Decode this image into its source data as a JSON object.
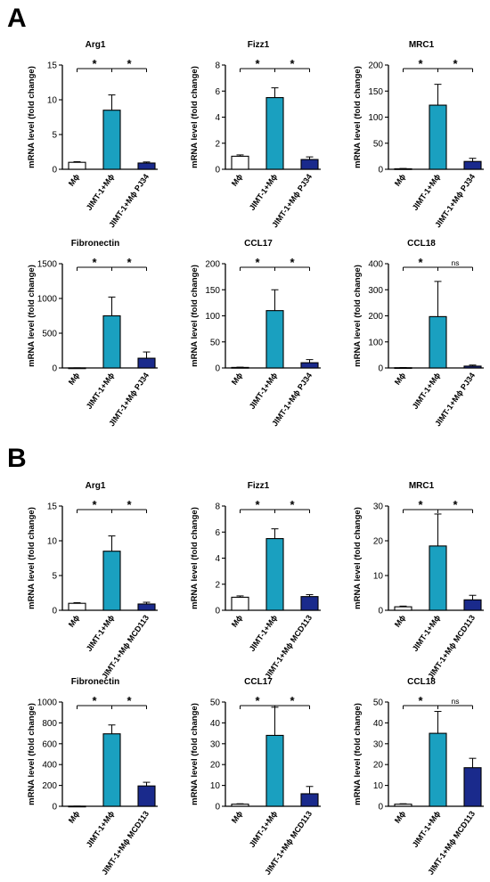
{
  "panels": [
    {
      "label": "A"
    },
    {
      "label": "B"
    }
  ],
  "colors": {
    "control": "#ffffff",
    "jimt": "#1aa0c0",
    "treated": "#1a2a8c",
    "stroke": "#000000"
  },
  "chart_data": [
    {
      "type": "bar",
      "title": "Arg1",
      "ylabel": "mRNA level (fold change)",
      "categories": [
        "Mϕ",
        "JIMT-1+Mϕ",
        "JIMT-1+Mϕ PJ34"
      ],
      "values": [
        1.0,
        8.5,
        0.9
      ],
      "errors": [
        0.1,
        2.2,
        0.15
      ],
      "ylim": [
        0,
        15
      ],
      "yticks": [
        0,
        5,
        10,
        15
      ],
      "significance": [
        {
          "from": 0,
          "to": 1,
          "label": "*"
        },
        {
          "from": 1,
          "to": 2,
          "label": "*"
        }
      ]
    },
    {
      "type": "bar",
      "title": "Fizz1",
      "ylabel": "mRNA level (fold change)",
      "categories": [
        "Mϕ",
        "JIMT-1+Mϕ",
        "JIMT-1+Mϕ PJ34"
      ],
      "values": [
        1.0,
        5.5,
        0.75
      ],
      "errors": [
        0.1,
        0.75,
        0.2
      ],
      "ylim": [
        0,
        8
      ],
      "yticks": [
        0,
        2,
        4,
        6,
        8
      ],
      "significance": [
        {
          "from": 0,
          "to": 1,
          "label": "*"
        },
        {
          "from": 1,
          "to": 2,
          "label": "*"
        }
      ]
    },
    {
      "type": "bar",
      "title": "MRC1",
      "ylabel": "mRNA level (fold change)",
      "categories": [
        "Mϕ",
        "JIMT-1+Mϕ",
        "JIMT-1+Mϕ PJ34"
      ],
      "values": [
        1,
        123,
        15
      ],
      "errors": [
        0.5,
        40,
        6
      ],
      "ylim": [
        0,
        200
      ],
      "yticks": [
        0,
        50,
        100,
        150,
        200
      ],
      "significance": [
        {
          "from": 0,
          "to": 1,
          "label": "*"
        },
        {
          "from": 1,
          "to": 2,
          "label": "*"
        }
      ]
    },
    {
      "type": "bar",
      "title": "Fibronectin",
      "ylabel": "mRNA level (fold change)",
      "categories": [
        "Mϕ",
        "JIMT-1+Mϕ",
        "JIMT-1+Mϕ PJ34"
      ],
      "values": [
        1,
        750,
        140
      ],
      "errors": [
        0.5,
        270,
        90
      ],
      "ylim": [
        0,
        1500
      ],
      "yticks": [
        0,
        500,
        1000,
        1500
      ],
      "significance": [
        {
          "from": 0,
          "to": 1,
          "label": "*"
        },
        {
          "from": 1,
          "to": 2,
          "label": "*"
        }
      ]
    },
    {
      "type": "bar",
      "title": "CCL17",
      "ylabel": "mRNA level (fold change)",
      "categories": [
        "Mϕ",
        "JIMT-1+Mϕ",
        "JIMT-1+Mϕ PJ34"
      ],
      "values": [
        1,
        110,
        10
      ],
      "errors": [
        0.5,
        40,
        6
      ],
      "ylim": [
        0,
        200
      ],
      "yticks": [
        0,
        50,
        100,
        150,
        200
      ],
      "significance": [
        {
          "from": 0,
          "to": 1,
          "label": "*"
        },
        {
          "from": 1,
          "to": 2,
          "label": "*"
        }
      ]
    },
    {
      "type": "bar",
      "title": "CCL18",
      "ylabel": "mRNA level (fold change)",
      "categories": [
        "Mϕ",
        "JIMT-1+Mϕ",
        "JIMT-1+Mϕ PJ34"
      ],
      "values": [
        1,
        197,
        7
      ],
      "errors": [
        0.5,
        135,
        4
      ],
      "ylim": [
        0,
        400
      ],
      "yticks": [
        0,
        100,
        200,
        300,
        400
      ],
      "significance": [
        {
          "from": 0,
          "to": 1,
          "label": "*"
        },
        {
          "from": 1,
          "to": 2,
          "label": "ns"
        }
      ]
    },
    {
      "type": "bar",
      "title": "Arg1",
      "ylabel": "mRNA level (fold change)",
      "categories": [
        "Mϕ",
        "JIMT-1+Mϕ",
        "JIMT-1+Mϕ MCD113"
      ],
      "values": [
        1.0,
        8.5,
        0.9
      ],
      "errors": [
        0.1,
        2.2,
        0.25
      ],
      "ylim": [
        0,
        15
      ],
      "yticks": [
        0,
        5,
        10,
        15
      ],
      "significance": [
        {
          "from": 0,
          "to": 1,
          "label": "*"
        },
        {
          "from": 1,
          "to": 2,
          "label": "*"
        }
      ]
    },
    {
      "type": "bar",
      "title": "Fizz1",
      "ylabel": "mRNA level (fold change)",
      "categories": [
        "Mϕ",
        "JIMT-1+Mϕ",
        "JIMT-1+Mϕ MCD113"
      ],
      "values": [
        1.0,
        5.5,
        1.05
      ],
      "errors": [
        0.1,
        0.75,
        0.15
      ],
      "ylim": [
        0,
        8
      ],
      "yticks": [
        0,
        2,
        4,
        6,
        8
      ],
      "significance": [
        {
          "from": 0,
          "to": 1,
          "label": "*"
        },
        {
          "from": 1,
          "to": 2,
          "label": "*"
        }
      ]
    },
    {
      "type": "bar",
      "title": "MRC1",
      "ylabel": "mRNA level (fold change)",
      "categories": [
        "Mϕ",
        "JIMT-1+Mϕ",
        "JIMT-1+Mϕ MCD113"
      ],
      "values": [
        1,
        18.5,
        3
      ],
      "errors": [
        0.2,
        9.2,
        1.3
      ],
      "ylim": [
        0,
        30
      ],
      "yticks": [
        0,
        10,
        20,
        30
      ],
      "significance": [
        {
          "from": 0,
          "to": 1,
          "label": "*"
        },
        {
          "from": 1,
          "to": 2,
          "label": "*"
        }
      ]
    },
    {
      "type": "bar",
      "title": "Fibronectin",
      "ylabel": "mRNA level (fold change)",
      "categories": [
        "Mϕ",
        "JIMT-1+Mϕ",
        "JIMT-1+Mϕ MCD113"
      ],
      "values": [
        1,
        695,
        195
      ],
      "errors": [
        0.5,
        85,
        35
      ],
      "ylim": [
        0,
        1000
      ],
      "yticks": [
        0,
        200,
        400,
        600,
        800,
        1000
      ],
      "significance": [
        {
          "from": 0,
          "to": 1,
          "label": "*"
        },
        {
          "from": 1,
          "to": 2,
          "label": "*"
        }
      ]
    },
    {
      "type": "bar",
      "title": "CCL17",
      "ylabel": "mRNA level (fold change)",
      "categories": [
        "Mϕ",
        "JIMT-1+Mϕ",
        "JIMT-1+Mϕ MCD113"
      ],
      "values": [
        1,
        34,
        6
      ],
      "errors": [
        0.2,
        13.5,
        3.5
      ],
      "ylim": [
        0,
        50
      ],
      "yticks": [
        0,
        10,
        20,
        30,
        40,
        50
      ],
      "significance": [
        {
          "from": 0,
          "to": 1,
          "label": "*"
        },
        {
          "from": 1,
          "to": 2,
          "label": "*"
        }
      ]
    },
    {
      "type": "bar",
      "title": "CCL18",
      "ylabel": "mRNA level (fold change)",
      "categories": [
        "Mϕ",
        "JIMT-1+Mϕ",
        "JIMT-1+Mϕ MCD113"
      ],
      "values": [
        1,
        35,
        18.5
      ],
      "errors": [
        0.2,
        10.5,
        4.5
      ],
      "ylim": [
        0,
        50
      ],
      "yticks": [
        0,
        10,
        20,
        30,
        40,
        50
      ],
      "significance": [
        {
          "from": 0,
          "to": 1,
          "label": "*"
        },
        {
          "from": 1,
          "to": 2,
          "label": "ns"
        }
      ]
    }
  ]
}
